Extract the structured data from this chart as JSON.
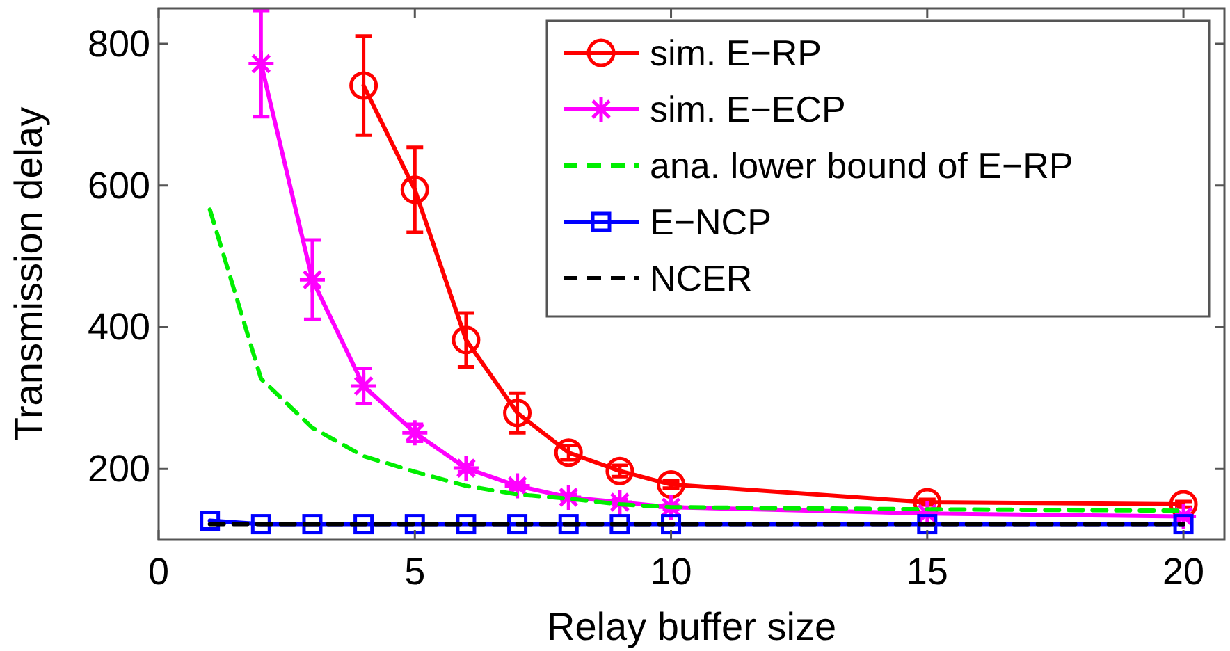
{
  "chart_data": {
    "type": "line",
    "xlabel": "Relay buffer size",
    "ylabel": "Transmission delay",
    "xlim": [
      0,
      20.8
    ],
    "xticks": [
      0,
      5,
      10,
      15,
      20
    ],
    "ylim": [
      100,
      850
    ],
    "yticks": [
      200,
      400,
      600,
      800
    ],
    "grid": false,
    "legend": "top right",
    "series": [
      {
        "name": "sim. E−RP",
        "color": "#ff0000",
        "marker": "circle",
        "line_style": "solid",
        "x": [
          4,
          5,
          6,
          7,
          8,
          9,
          10,
          15,
          20
        ],
        "values": [
          741,
          594,
          382,
          279,
          223,
          197,
          178,
          153,
          150
        ],
        "errors": [
          70,
          60,
          38,
          28,
          10,
          8,
          5,
          4,
          4
        ]
      },
      {
        "name": "sim. E−ECP",
        "color": "#ff00ff",
        "marker": "cross",
        "line_style": "solid",
        "x": [
          2,
          3,
          4,
          5,
          6,
          7,
          8,
          9,
          10,
          15,
          20
        ],
        "values": [
          772,
          467,
          317,
          251,
          201,
          176,
          160,
          153,
          146,
          137,
          133
        ],
        "errors": [
          75,
          56,
          25,
          12,
          5,
          5,
          4,
          4,
          3,
          2,
          2
        ]
      },
      {
        "name": "ana. lower bound of E−RP",
        "color": "#00ee00",
        "marker": "none",
        "line_style": "dashed",
        "x": [
          1,
          2,
          3,
          4,
          5,
          6,
          7,
          8,
          9,
          10,
          15,
          20
        ],
        "values": [
          566,
          327,
          258,
          218,
          196,
          176,
          164,
          158,
          150,
          146,
          143,
          141
        ]
      },
      {
        "name": "E−NCP",
        "color": "#0000ff",
        "marker": "square",
        "line_style": "solid",
        "x": [
          1,
          2,
          3,
          4,
          5,
          6,
          7,
          8,
          9,
          10,
          15,
          20
        ],
        "values": [
          127,
          122,
          122,
          122,
          122,
          122,
          122,
          122,
          122,
          122,
          122,
          122
        ]
      },
      {
        "name": "NCER",
        "color": "#000000",
        "marker": "none",
        "line_style": "dashed",
        "x": [
          1,
          2,
          3,
          4,
          5,
          6,
          7,
          8,
          9,
          10,
          15,
          20
        ],
        "values": [
          122,
          122,
          122,
          122,
          122,
          122,
          122,
          122,
          122,
          122,
          122,
          122
        ]
      }
    ]
  }
}
